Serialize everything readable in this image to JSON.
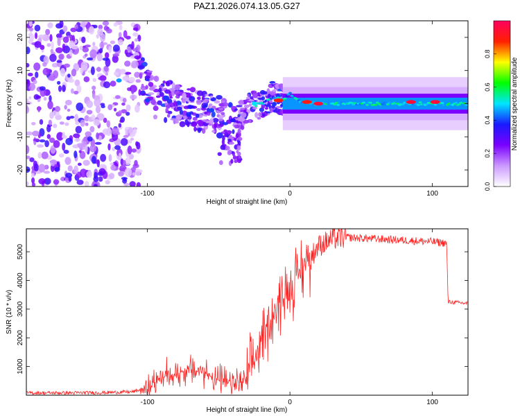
{
  "title": "PAZ1.2026.074.13.05.G27",
  "chart_data": [
    {
      "type": "heatmap",
      "xlabel": "Height of straight line (km)",
      "ylabel": "Frequency (Hz)",
      "xlim": [
        -185,
        125
      ],
      "ylim": [
        -25,
        25
      ],
      "xticks": [
        -100,
        0,
        100
      ],
      "yticks": [
        -20,
        -10,
        0,
        10,
        20
      ],
      "colorbar": {
        "label": "Normalized spectral amplitude",
        "range": [
          0,
          1
        ],
        "ticks": [
          "0.0",
          "0.2",
          "0.4",
          "0.6",
          "0.8"
        ],
        "tick_values": [
          0,
          0.2,
          0.4,
          0.6,
          0.8
        ],
        "colors": [
          "#ffffff",
          "#cc99ff",
          "#7a00ff",
          "#1a1aff",
          "#00e5ff",
          "#00ff00",
          "#ffff00",
          "#ff2000",
          "#ff0060"
        ]
      },
      "ridge": {
        "x": [
          -185,
          -140,
          -120,
          -105,
          -95,
          -80,
          -65,
          -55,
          -45,
          -38,
          -30,
          -20,
          -12,
          -5,
          0,
          5,
          15,
          30,
          60,
          90,
          125
        ],
        "freq": [
          5,
          7,
          8,
          9,
          2,
          0,
          -2,
          -3,
          -5,
          -6,
          -1,
          0,
          2,
          1,
          3,
          1,
          0,
          0,
          0,
          0,
          0
        ]
      },
      "hotspots": [
        {
          "x": -120,
          "freq": 7,
          "amp": 0.45
        },
        {
          "x": -100,
          "freq": 1,
          "amp": 0.4
        },
        {
          "x": -70,
          "freq": -1,
          "amp": 0.35
        },
        {
          "x": -55,
          "freq": -2,
          "amp": 0.4
        },
        {
          "x": -40,
          "freq": -5,
          "amp": 0.35
        },
        {
          "x": -25,
          "freq": 0,
          "amp": 0.5
        },
        {
          "x": -8,
          "freq": 1,
          "amp": 0.9
        },
        {
          "x": 12,
          "freq": 0.5,
          "amp": 0.9
        },
        {
          "x": 20,
          "freq": 0,
          "amp": 0.95
        },
        {
          "x": 85,
          "freq": 0.5,
          "amp": 0.95
        },
        {
          "x": 102,
          "freq": 0.5,
          "amp": 0.95
        }
      ]
    },
    {
      "type": "line",
      "xlabel": "Height of straight line (km)",
      "ylabel": "SNR (10 * v/v)",
      "xlim": [
        -185,
        125
      ],
      "ylim": [
        0,
        5800
      ],
      "xticks": [
        -100,
        0,
        100
      ],
      "yticks": [
        1000,
        2000,
        3000,
        4000,
        5000
      ],
      "series": [
        {
          "name": "SNR",
          "color": "#ff2020",
          "x": [
            -185,
            -160,
            -130,
            -110,
            -100,
            -90,
            -80,
            -70,
            -60,
            -50,
            -40,
            -30,
            -25,
            -20,
            -10,
            0,
            10,
            20,
            30,
            40,
            60,
            80,
            100,
            110,
            111,
            125
          ],
          "values": [
            80,
            80,
            90,
            120,
            250,
            600,
            750,
            900,
            800,
            500,
            400,
            500,
            1200,
            2000,
            3000,
            3800,
            4500,
            5200,
            5450,
            5500,
            5450,
            5400,
            5350,
            5300,
            3250,
            3200
          ]
        }
      ]
    }
  ]
}
